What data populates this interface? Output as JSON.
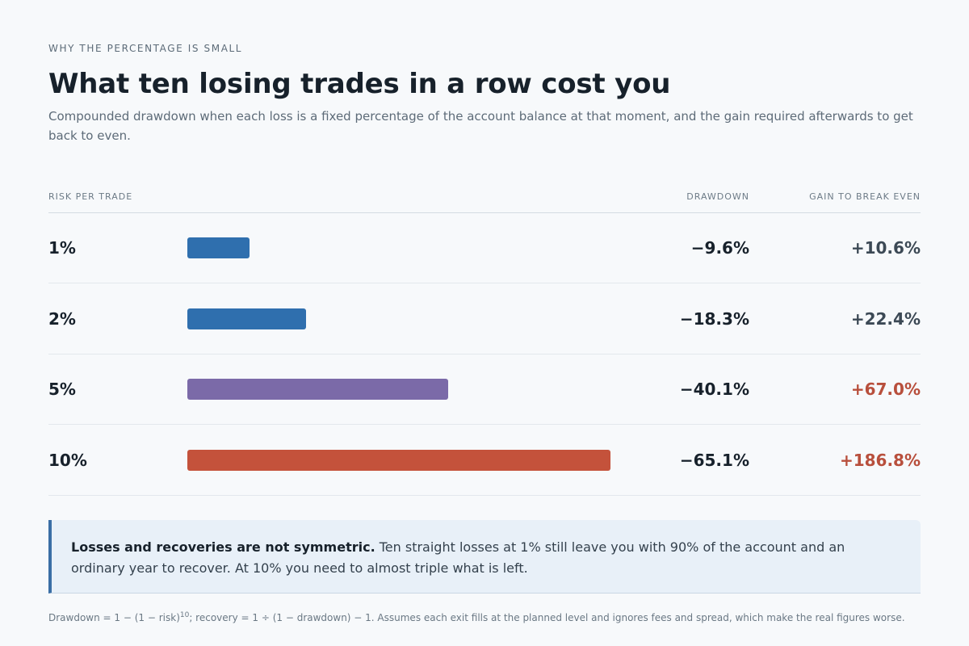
{
  "eyebrow": "WHY THE PERCENTAGE IS SMALL",
  "title": "What ten losing trades in a row cost you",
  "subtitle": "Compounded drawdown when each loss is a fixed percentage of the account balance at that moment, and the gain required afterwards to get back to even.",
  "columns": {
    "risk": "RISK PER TRADE",
    "drawdown": "DRAWDOWN",
    "gain": "GAIN TO BREAK EVEN"
  },
  "colors": {
    "low_risk": "#2f6fae",
    "mid_risk": "#7b6aa8",
    "high_risk": "#c4523b",
    "gain_neutral": "#3c4955",
    "gain_warning": "#b84f3c"
  },
  "chart_data": {
    "type": "bar",
    "orientation": "horizontal",
    "categories": [
      "1%",
      "2%",
      "5%",
      "10%"
    ],
    "series": [
      {
        "values": [
          -9.6,
          -18.3,
          -40.1,
          -65.1
        ]
      }
    ],
    "rows": [
      {
        "risk": "1%",
        "drawdown": 9.6,
        "drawdown_label": "−9.6%",
        "gain_label": "+10.6%",
        "bar_color": "#2f6fae",
        "gain_color": "#3c4955"
      },
      {
        "risk": "2%",
        "drawdown": 18.3,
        "drawdown_label": "−18.3%",
        "gain_label": "+22.4%",
        "bar_color": "#2f6fae",
        "gain_color": "#3c4955"
      },
      {
        "risk": "5%",
        "drawdown": 40.1,
        "drawdown_label": "−40.1%",
        "gain_label": "+67.0%",
        "bar_color": "#7b6aa8",
        "gain_color": "#b84f3c"
      },
      {
        "risk": "10%",
        "drawdown": 65.1,
        "drawdown_label": "−65.1%",
        "gain_label": "+186.8%",
        "bar_color": "#c4523b",
        "gain_color": "#b84f3c"
      }
    ],
    "xlim": [
      0,
      100
    ],
    "grid": false,
    "legend": "none"
  },
  "callout": {
    "bold": "Losses and recoveries are not symmetric.",
    "text": " Ten straight losses at 1% still leave you with 90% of the account and an ordinary year to recover. At 10% you need to almost triple what is left."
  },
  "footnote": {
    "part1": "Drawdown = 1 − (1 − risk)",
    "sup": "10",
    "part2": "; recovery = 1 ÷ (1 − drawdown) − 1. Assumes each exit fills at the planned level and ignores fees and spread, which make the real figures worse."
  }
}
